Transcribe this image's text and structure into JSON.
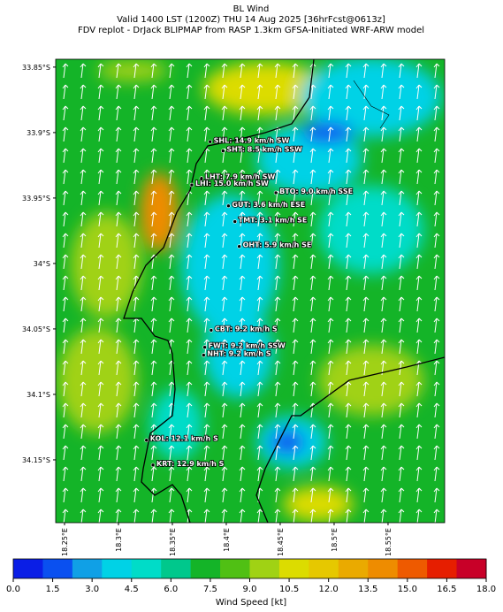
{
  "header": {
    "title": "BL Wind",
    "subtitle": "Valid 1400 LST (1200Z) THU 14 Aug 2025 [36hrFcst@0613z]",
    "source": "FDV replot - DrJack BLIPMAP from RASP 1.3km GFSA-Initiated WRF-ARW model"
  },
  "map": {
    "ylim": [
      33.844,
      34.198
    ],
    "xlim": [
      18.2418,
      18.6025
    ],
    "yticks": [
      {
        "value": 33.85,
        "label": "33.85°S"
      },
      {
        "value": 33.9,
        "label": "33.9°S"
      },
      {
        "value": 33.95,
        "label": "33.95°S"
      },
      {
        "value": 34.0,
        "label": "34°S"
      },
      {
        "value": 34.05,
        "label": "34.05°S"
      },
      {
        "value": 34.1,
        "label": "34.1°S"
      },
      {
        "value": 34.15,
        "label": "34.15°S"
      }
    ],
    "xticks": [
      {
        "value": 18.25,
        "label": "18.25°E"
      },
      {
        "value": 18.3,
        "label": "18.3°E"
      },
      {
        "value": 18.35,
        "label": "18.35°E"
      },
      {
        "value": 18.4,
        "label": "18.4°E"
      },
      {
        "value": 18.45,
        "label": "18.45°E"
      },
      {
        "value": 18.5,
        "label": "18.5°E"
      },
      {
        "value": 18.55,
        "label": "18.55°E"
      }
    ],
    "stations": [
      {
        "label": "SHL: 14.9 km/h SW",
        "lat": 33.907,
        "lon": 18.385
      },
      {
        "label": "SHT: 8.5 km/h SSW",
        "lat": 33.914,
        "lon": 18.397
      },
      {
        "label": "LHT: 7.9 km/h SW",
        "lat": 33.935,
        "lon": 18.377
      },
      {
        "label": "LHI: 15.0 km/h SW",
        "lat": 33.94,
        "lon": 18.368
      },
      {
        "label": "BTO: 9.0 km/h SSE",
        "lat": 33.946,
        "lon": 18.446
      },
      {
        "label": "GUT: 3.6 km/h ESE",
        "lat": 33.956,
        "lon": 18.402
      },
      {
        "label": "TMT: 3.1 km/h SE",
        "lat": 33.968,
        "lon": 18.408
      },
      {
        "label": "OHT: 5.9 km/h SE",
        "lat": 33.987,
        "lon": 18.412
      },
      {
        "label": "CBT: 9.2 km/h S",
        "lat": 34.051,
        "lon": 18.386
      },
      {
        "label": "FWT: 9.2 km/h SSW",
        "lat": 34.064,
        "lon": 18.38
      },
      {
        "label": "NHT: 9.2 km/h S",
        "lat": 34.07,
        "lon": 18.379
      },
      {
        "label": "KOL: 12.1 km/h S",
        "lat": 34.135,
        "lon": 18.326
      },
      {
        "label": "KRT: 12.9 km/h S",
        "lat": 34.154,
        "lon": 18.332
      }
    ]
  },
  "colorbar": {
    "label": "Wind Speed [kt]",
    "lim": [
      0,
      18
    ],
    "ticks": [
      0,
      1.5,
      3,
      4.5,
      6,
      7.5,
      9,
      10.5,
      12,
      13.5,
      15,
      16.5,
      18
    ],
    "tick_labels": [
      "0.0",
      "1.5",
      "3.0",
      "4.5",
      "6.0",
      "7.5",
      "9.0",
      "10.5",
      "12.0",
      "13.5",
      "15.0",
      "16.5",
      "18.0"
    ],
    "colors": [
      "#0a1ee6",
      "#0a50f0",
      "#10a0e6",
      "#00d2e6",
      "#00dcc8",
      "#00c88c",
      "#14b428",
      "#50c014",
      "#a0d214",
      "#dcdc00",
      "#e6c800",
      "#eaaa00",
      "#ee8c00",
      "#ee5a00",
      "#e61e00",
      "#c80028"
    ]
  }
}
